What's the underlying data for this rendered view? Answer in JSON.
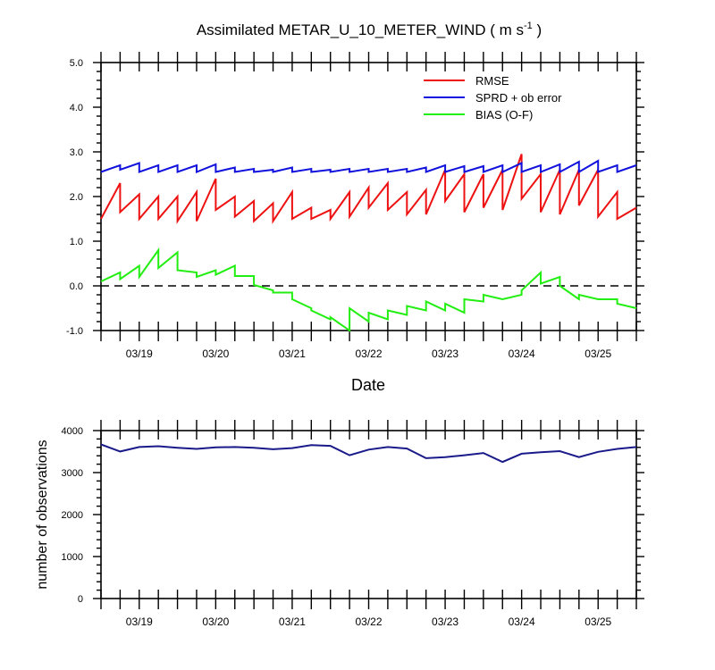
{
  "chart_data": [
    {
      "type": "line",
      "title_main": "Assimilated METAR_U_10_METER_WIND ( m s",
      "title_sup": "-1",
      "title_end": " )",
      "xlabel": "Date",
      "ylabel": "",
      "ylim": [
        -1.0,
        5.0
      ],
      "yticks": [
        "-1.0",
        "0.0",
        "1.0",
        "2.0",
        "3.0",
        "4.0",
        "5.0"
      ],
      "xlim": [
        "2017-03-18 12:00",
        "2017-03-25 12:00"
      ],
      "xtick_labels": [
        "03/19",
        "03/20",
        "03/21",
        "03/22",
        "03/23",
        "03/24",
        "03/25"
      ],
      "xtick_dates": [
        "2017-03-19 00:00",
        "2017-03-20 00:00",
        "2017-03-21 00:00",
        "2017-03-22 00:00",
        "2017-03-23 00:00",
        "2017-03-24 00:00",
        "2017-03-25 00:00"
      ],
      "legend": "top-right",
      "reference_line": 0.0,
      "series": [
        {
          "name": "RMSE",
          "color": "#ee1111",
          "x": [
            "2017-03-18 12:00",
            "2017-03-18 18:00",
            "2017-03-18 18:00",
            "2017-03-19 00:00",
            "2017-03-19 00:00",
            "2017-03-19 06:00",
            "2017-03-19 06:00",
            "2017-03-19 12:00",
            "2017-03-19 12:00",
            "2017-03-19 18:00",
            "2017-03-19 18:00",
            "2017-03-20 00:00",
            "2017-03-20 00:00",
            "2017-03-20 06:00",
            "2017-03-20 06:00",
            "2017-03-20 12:00",
            "2017-03-20 12:00",
            "2017-03-20 18:00",
            "2017-03-20 18:00",
            "2017-03-21 00:00",
            "2017-03-21 00:00",
            "2017-03-21 06:00",
            "2017-03-21 06:00",
            "2017-03-21 12:00",
            "2017-03-21 12:00",
            "2017-03-21 18:00",
            "2017-03-21 18:00",
            "2017-03-22 00:00",
            "2017-03-22 00:00",
            "2017-03-22 06:00",
            "2017-03-22 06:00",
            "2017-03-22 12:00",
            "2017-03-22 12:00",
            "2017-03-22 18:00",
            "2017-03-22 18:00",
            "2017-03-23 00:00",
            "2017-03-23 00:00",
            "2017-03-23 06:00",
            "2017-03-23 06:00",
            "2017-03-23 12:00",
            "2017-03-23 12:00",
            "2017-03-23 18:00",
            "2017-03-23 18:00",
            "2017-03-24 00:00",
            "2017-03-24 00:00",
            "2017-03-24 06:00",
            "2017-03-24 06:00",
            "2017-03-24 12:00",
            "2017-03-24 12:00",
            "2017-03-24 18:00",
            "2017-03-24 18:00",
            "2017-03-25 00:00",
            "2017-03-25 00:00",
            "2017-03-25 06:00",
            "2017-03-25 06:00",
            "2017-03-25 12:00"
          ],
          "values": [
            1.5,
            2.3,
            1.65,
            2.05,
            1.5,
            2.0,
            1.5,
            2.0,
            1.45,
            2.1,
            1.45,
            2.4,
            1.7,
            2.0,
            1.55,
            1.9,
            1.45,
            1.85,
            1.45,
            2.1,
            1.5,
            1.75,
            1.5,
            1.7,
            1.5,
            2.1,
            1.55,
            2.2,
            1.75,
            2.3,
            1.7,
            2.1,
            1.6,
            2.15,
            1.6,
            2.6,
            1.9,
            2.5,
            1.65,
            2.5,
            1.75,
            2.6,
            1.7,
            2.95,
            1.95,
            2.5,
            1.65,
            2.6,
            1.6,
            2.6,
            1.8,
            2.6,
            1.55,
            2.1,
            1.5,
            1.75
          ]
        },
        {
          "name": "SPRD + ob error",
          "color": "#1111dd",
          "x": [
            "2017-03-18 12:00",
            "2017-03-18 18:00",
            "2017-03-18 18:00",
            "2017-03-19 00:00",
            "2017-03-19 00:00",
            "2017-03-19 06:00",
            "2017-03-19 06:00",
            "2017-03-19 12:00",
            "2017-03-19 12:00",
            "2017-03-19 18:00",
            "2017-03-19 18:00",
            "2017-03-20 00:00",
            "2017-03-20 00:00",
            "2017-03-20 06:00",
            "2017-03-20 06:00",
            "2017-03-20 12:00",
            "2017-03-20 12:00",
            "2017-03-20 18:00",
            "2017-03-20 18:00",
            "2017-03-21 00:00",
            "2017-03-21 00:00",
            "2017-03-21 06:00",
            "2017-03-21 06:00",
            "2017-03-21 12:00",
            "2017-03-21 12:00",
            "2017-03-21 18:00",
            "2017-03-21 18:00",
            "2017-03-22 00:00",
            "2017-03-22 00:00",
            "2017-03-22 06:00",
            "2017-03-22 06:00",
            "2017-03-22 12:00",
            "2017-03-22 12:00",
            "2017-03-22 18:00",
            "2017-03-22 18:00",
            "2017-03-23 00:00",
            "2017-03-23 00:00",
            "2017-03-23 06:00",
            "2017-03-23 06:00",
            "2017-03-23 12:00",
            "2017-03-23 12:00",
            "2017-03-23 18:00",
            "2017-03-23 18:00",
            "2017-03-24 00:00",
            "2017-03-24 00:00",
            "2017-03-24 06:00",
            "2017-03-24 06:00",
            "2017-03-24 12:00",
            "2017-03-24 12:00",
            "2017-03-24 18:00",
            "2017-03-24 18:00",
            "2017-03-25 00:00",
            "2017-03-25 00:00",
            "2017-03-25 06:00",
            "2017-03-25 06:00",
            "2017-03-25 12:00"
          ],
          "values": [
            2.55,
            2.7,
            2.6,
            2.75,
            2.55,
            2.7,
            2.55,
            2.7,
            2.55,
            2.7,
            2.55,
            2.72,
            2.55,
            2.65,
            2.55,
            2.62,
            2.55,
            2.6,
            2.55,
            2.65,
            2.55,
            2.62,
            2.55,
            2.6,
            2.55,
            2.62,
            2.55,
            2.62,
            2.55,
            2.62,
            2.55,
            2.62,
            2.55,
            2.65,
            2.55,
            2.7,
            2.55,
            2.68,
            2.55,
            2.68,
            2.55,
            2.7,
            2.55,
            2.75,
            2.55,
            2.7,
            2.55,
            2.72,
            2.55,
            2.78,
            2.55,
            2.8,
            2.55,
            2.7,
            2.55,
            2.7
          ]
        },
        {
          "name": "BIAS (O-F)",
          "color": "#22ee11",
          "x": [
            "2017-03-18 12:00",
            "2017-03-18 18:00",
            "2017-03-18 18:00",
            "2017-03-19 00:00",
            "2017-03-19 00:00",
            "2017-03-19 06:00",
            "2017-03-19 06:00",
            "2017-03-19 12:00",
            "2017-03-19 12:00",
            "2017-03-19 18:00",
            "2017-03-19 18:00",
            "2017-03-20 00:00",
            "2017-03-20 00:00",
            "2017-03-20 06:00",
            "2017-03-20 06:00",
            "2017-03-20 12:00",
            "2017-03-20 12:00",
            "2017-03-20 18:00",
            "2017-03-20 18:00",
            "2017-03-21 00:00",
            "2017-03-21 00:00",
            "2017-03-21 06:00",
            "2017-03-21 06:00",
            "2017-03-21 12:00",
            "2017-03-21 12:00",
            "2017-03-21 18:00",
            "2017-03-21 18:00",
            "2017-03-22 00:00",
            "2017-03-22 00:00",
            "2017-03-22 06:00",
            "2017-03-22 06:00",
            "2017-03-22 12:00",
            "2017-03-22 12:00",
            "2017-03-22 18:00",
            "2017-03-22 18:00",
            "2017-03-23 00:00",
            "2017-03-23 00:00",
            "2017-03-23 06:00",
            "2017-03-23 06:00",
            "2017-03-23 12:00",
            "2017-03-23 12:00",
            "2017-03-23 18:00",
            "2017-03-23 18:00",
            "2017-03-24 00:00",
            "2017-03-24 00:00",
            "2017-03-24 06:00",
            "2017-03-24 06:00",
            "2017-03-24 12:00",
            "2017-03-24 12:00",
            "2017-03-24 18:00",
            "2017-03-24 18:00",
            "2017-03-25 00:00",
            "2017-03-25 00:00",
            "2017-03-25 06:00",
            "2017-03-25 06:00",
            "2017-03-25 12:00"
          ],
          "values": [
            0.1,
            0.3,
            0.15,
            0.45,
            0.2,
            0.8,
            0.4,
            0.75,
            0.35,
            0.3,
            0.2,
            0.35,
            0.25,
            0.45,
            0.22,
            0.22,
            0.02,
            -0.1,
            -0.15,
            -0.15,
            -0.3,
            -0.5,
            -0.55,
            -0.75,
            -0.7,
            -1.0,
            -0.5,
            -0.8,
            -0.6,
            -0.75,
            -0.55,
            -0.65,
            -0.45,
            -0.55,
            -0.35,
            -0.55,
            -0.4,
            -0.6,
            -0.3,
            -0.35,
            -0.2,
            -0.3,
            -0.3,
            -0.2,
            -0.1,
            0.3,
            0.05,
            0.2,
            0.0,
            -0.3,
            -0.2,
            -0.3,
            -0.3,
            -0.3,
            -0.4,
            -0.5
          ]
        }
      ]
    },
    {
      "type": "line",
      "xlabel": "",
      "ylabel": "number of observations",
      "ylim": [
        0,
        4500
      ],
      "yticks": [
        "0",
        "1000",
        "2000",
        "3000",
        "4000"
      ],
      "xlim": [
        "2017-03-18 12:00",
        "2017-03-25 12:00"
      ],
      "xtick_labels": [
        "03/19",
        "03/20",
        "03/21",
        "03/22",
        "03/23",
        "03/24",
        "03/25"
      ],
      "xtick_dates": [
        "2017-03-19 00:00",
        "2017-03-20 00:00",
        "2017-03-21 00:00",
        "2017-03-22 00:00",
        "2017-03-23 00:00",
        "2017-03-24 00:00",
        "2017-03-25 00:00"
      ],
      "series": [
        {
          "color": "#1a1a8a",
          "x": [
            "2017-03-18 12:00",
            "2017-03-18 18:00",
            "2017-03-19 00:00",
            "2017-03-19 06:00",
            "2017-03-19 12:00",
            "2017-03-19 18:00",
            "2017-03-20 00:00",
            "2017-03-20 06:00",
            "2017-03-20 12:00",
            "2017-03-20 18:00",
            "2017-03-21 00:00",
            "2017-03-21 06:00",
            "2017-03-21 12:00",
            "2017-03-21 18:00",
            "2017-03-22 00:00",
            "2017-03-22 06:00",
            "2017-03-22 12:00",
            "2017-03-22 18:00",
            "2017-03-23 00:00",
            "2017-03-23 06:00",
            "2017-03-23 12:00",
            "2017-03-23 18:00",
            "2017-03-24 00:00",
            "2017-03-24 06:00",
            "2017-03-24 12:00",
            "2017-03-24 18:00",
            "2017-03-25 00:00",
            "2017-03-25 06:00",
            "2017-03-25 12:00"
          ],
          "values": [
            4130,
            3940,
            4060,
            4080,
            4040,
            4010,
            4050,
            4060,
            4040,
            4000,
            4030,
            4110,
            4090,
            3840,
            3990,
            4060,
            4020,
            3760,
            3790,
            3840,
            3900,
            3660,
            3880,
            3920,
            3950,
            3790,
            3930,
            4010,
            4060
          ]
        }
      ]
    }
  ]
}
